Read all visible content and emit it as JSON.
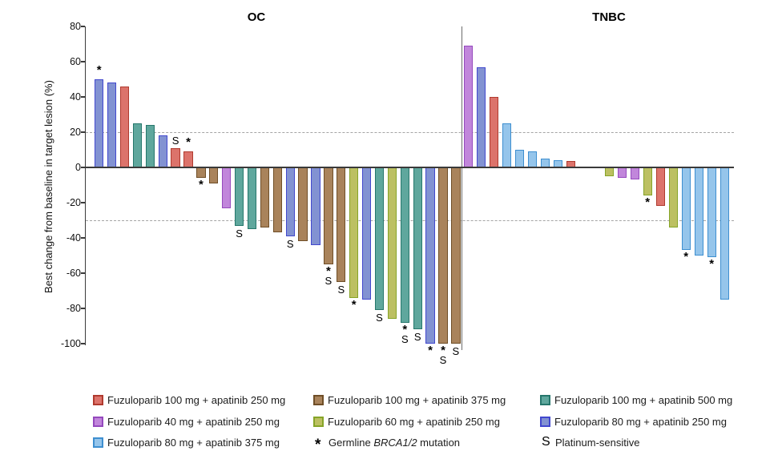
{
  "chart_data": {
    "type": "bar",
    "subtype": "waterfall",
    "ylabel": "Best change from baseline in target lesion (%)",
    "ylim": [
      -100,
      80
    ],
    "yticks": [
      80,
      60,
      40,
      20,
      0,
      -20,
      -40,
      -60,
      -80,
      -100
    ],
    "reference_lines": [
      20,
      -30
    ],
    "grid": "off",
    "legend_position": "bottom",
    "treatments": {
      "fz100_ap250": {
        "label": "Fuzuloparib 100 mg + apatinib 250 mg",
        "fill": "#DC736B",
        "stroke": "#B03A2E"
      },
      "fz100_ap375": {
        "label": "Fuzuloparib 100 mg + apatinib 375 mg",
        "fill": "#A9835B",
        "stroke": "#6F4E27"
      },
      "fz100_ap500": {
        "label": "Fuzuloparib 100 mg + apatinib 500 mg",
        "fill": "#5FA79D",
        "stroke": "#26776C"
      },
      "fz40_ap250": {
        "label": "Fuzuloparib 40 mg + apatinib 250 mg",
        "fill": "#C186DB",
        "stroke": "#9549BE"
      },
      "fz60_ap250": {
        "label": "Fuzuloparib 60 mg + apatinib 250 mg",
        "fill": "#BCC062",
        "stroke": "#86A428"
      },
      "fz80_ap250": {
        "label": "Fuzuloparib 80 mg + apatinib 250 mg",
        "fill": "#8292D2",
        "stroke": "#4248CE"
      },
      "fz80_ap375": {
        "label": "Fuzuloparib 80 mg + apatinib 375 mg",
        "fill": "#95C5EB",
        "stroke": "#3E8FD0"
      }
    },
    "annotation_markers": {
      "*": "Germline BRCA1/2 mutation",
      "S": "Platinum-sensitive"
    },
    "panels": [
      {
        "name": "OC",
        "bars": [
          {
            "v": 50,
            "c": "fz80_ap250",
            "ann": "*"
          },
          {
            "v": 48,
            "c": "fz80_ap250"
          },
          {
            "v": 46,
            "c": "fz100_ap250"
          },
          {
            "v": 25,
            "c": "fz100_ap500"
          },
          {
            "v": 24,
            "c": "fz100_ap500"
          },
          {
            "v": 18,
            "c": "fz80_ap250"
          },
          {
            "v": 11,
            "c": "fz100_ap250",
            "ann": "S"
          },
          {
            "v": 9,
            "c": "fz100_ap250",
            "ann": "*"
          },
          {
            "v": -6,
            "c": "fz100_ap375",
            "ann": "*"
          },
          {
            "v": -9,
            "c": "fz100_ap375"
          },
          {
            "v": -23,
            "c": "fz40_ap250"
          },
          {
            "v": -33,
            "c": "fz100_ap500",
            "ann": "S"
          },
          {
            "v": -35,
            "c": "fz100_ap500"
          },
          {
            "v": -34,
            "c": "fz100_ap375"
          },
          {
            "v": -37,
            "c": "fz100_ap375"
          },
          {
            "v": -39,
            "c": "fz80_ap250",
            "ann": "S"
          },
          {
            "v": -42,
            "c": "fz100_ap375"
          },
          {
            "v": -44,
            "c": "fz80_ap250"
          },
          {
            "v": -55,
            "c": "fz100_ap375",
            "ann": "*S"
          },
          {
            "v": -65,
            "c": "fz100_ap375",
            "ann": "S"
          },
          {
            "v": -74,
            "c": "fz60_ap250",
            "ann": "*"
          },
          {
            "v": -75,
            "c": "fz80_ap250"
          },
          {
            "v": -81,
            "c": "fz100_ap500",
            "ann": "S"
          },
          {
            "v": -86,
            "c": "fz60_ap250"
          },
          {
            "v": -88,
            "c": "fz100_ap500",
            "ann": "*S"
          },
          {
            "v": -92,
            "c": "fz100_ap500",
            "ann": "S"
          },
          {
            "v": -100,
            "c": "fz80_ap250",
            "ann": "*"
          },
          {
            "v": -100,
            "c": "fz100_ap375",
            "ann": "*S"
          },
          {
            "v": -100,
            "c": "fz100_ap375",
            "ann": "S"
          }
        ]
      },
      {
        "name": "TNBC",
        "bars": [
          {
            "v": 69,
            "c": "fz40_ap250"
          },
          {
            "v": 57,
            "c": "fz80_ap250"
          },
          {
            "v": 40,
            "c": "fz100_ap250"
          },
          {
            "v": 25,
            "c": "fz80_ap375"
          },
          {
            "v": 10,
            "c": "fz80_ap375"
          },
          {
            "v": 9,
            "c": "fz80_ap375"
          },
          {
            "v": 5,
            "c": "fz80_ap375"
          },
          {
            "v": 4,
            "c": "fz80_ap375"
          },
          {
            "v": 3.5,
            "c": "fz100_ap250"
          },
          {
            "v": 0,
            "c": null
          },
          {
            "v": 0,
            "c": null
          },
          {
            "v": -5,
            "c": "fz60_ap250"
          },
          {
            "v": -6,
            "c": "fz40_ap250"
          },
          {
            "v": -7,
            "c": "fz40_ap250"
          },
          {
            "v": -16,
            "c": "fz60_ap250",
            "ann": "*"
          },
          {
            "v": -22,
            "c": "fz100_ap250"
          },
          {
            "v": -34,
            "c": "fz60_ap250"
          },
          {
            "v": -47,
            "c": "fz80_ap375",
            "ann": "*"
          },
          {
            "v": -50,
            "c": "fz80_ap375"
          },
          {
            "v": -51,
            "c": "fz80_ap375",
            "ann": "*"
          },
          {
            "v": -75,
            "c": "fz80_ap375"
          }
        ]
      }
    ]
  },
  "legend": {
    "rows": [
      [
        {
          "type": "swatch",
          "color": "fz100_ap250"
        },
        {
          "type": "swatch",
          "color": "fz100_ap375"
        },
        {
          "type": "swatch",
          "color": "fz100_ap500"
        }
      ],
      [
        {
          "type": "swatch",
          "color": "fz40_ap250"
        },
        {
          "type": "swatch",
          "color": "fz60_ap250"
        },
        {
          "type": "swatch",
          "color": "fz80_ap250"
        }
      ],
      [
        {
          "type": "swatch",
          "color": "fz80_ap375"
        },
        {
          "type": "symbol",
          "symbol": "*",
          "symbol_name": "asterisk-marker",
          "parts": [
            {
              "text": "Germline "
            },
            {
              "text": "BRCA1/2",
              "italic": true
            },
            {
              "text": " mutation"
            }
          ]
        },
        {
          "type": "symbol",
          "symbol": "S",
          "symbol_name": "s-marker",
          "parts": [
            {
              "text": "Platinum-sensitive"
            }
          ]
        }
      ]
    ]
  }
}
